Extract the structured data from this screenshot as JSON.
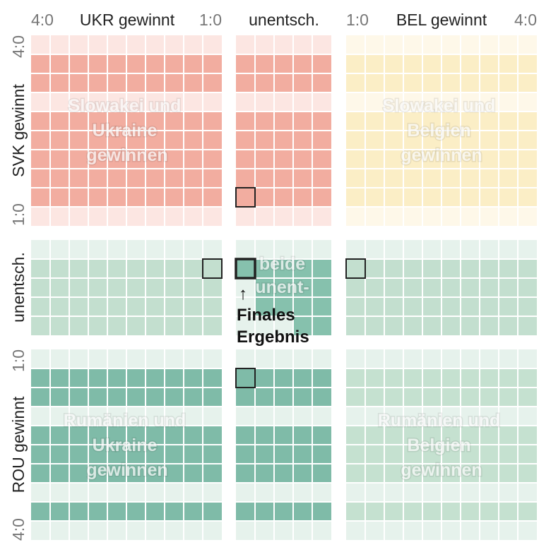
{
  "chart_data": {
    "type": "heatmap",
    "title": "",
    "columns": {
      "groups": [
        {
          "key": "ukr",
          "label": "UKR gewinnt",
          "tick_left": "4:0",
          "tick_right": "1:0"
        },
        {
          "key": "draw",
          "label": "unentsch."
        },
        {
          "key": "bel",
          "label": "BEL gewinnt",
          "tick_left": "1:0",
          "tick_right": "4:0"
        }
      ]
    },
    "rows": {
      "groups": [
        {
          "key": "svk",
          "label": "SVK gewinnt",
          "tick_top": "4:0",
          "tick_bottom": "1:0"
        },
        {
          "key": "draw",
          "label": "unentsch."
        },
        {
          "key": "rou",
          "label": "ROU gewinnt",
          "tick_top": "1:0",
          "tick_bottom": "4:0"
        }
      ]
    },
    "quadrant_labels": {
      "svk_ukr": [
        "Slowakei und",
        "Ukraine",
        "gewinnen"
      ],
      "svk_bel": [
        "Slowakei und",
        "Belgien",
        "gewinnen"
      ],
      "rou_ukr": [
        "Rumänien und",
        "Ukraine",
        "gewinnen"
      ],
      "rou_bel": [
        "Rumänien und",
        "Belgien",
        "gewinnen"
      ],
      "draw_draw": [
        "beide",
        "unent-",
        "..."
      ]
    },
    "annotation": {
      "arrow": "↑",
      "lines": [
        "Finales",
        "Ergebnis"
      ]
    },
    "colors": {
      "svk_ukr": "#f2ada0",
      "svk_draw": "#f2ada0",
      "svk_bel": "#fbeec6",
      "draw_ukr": "#c3dfcf",
      "draw_draw": "#86c1ad",
      "draw_bel": "#c3dfcf",
      "rou_ukr": "#7fbba8",
      "rou_draw": "#7fbba8",
      "rou_bel": "#c5e1d0",
      "faint_red": "#fce6e2",
      "faint_yellow": "#fef8e9",
      "faint_green": "#e6f2ec"
    },
    "highlighted_cells": [
      {
        "row": "svk",
        "col": "draw"
      },
      {
        "row": "draw",
        "col": "ukr"
      },
      {
        "row": "draw",
        "col": "draw"
      },
      {
        "row": "draw",
        "col": "bel"
      },
      {
        "row": "rou",
        "col": "draw"
      }
    ]
  }
}
